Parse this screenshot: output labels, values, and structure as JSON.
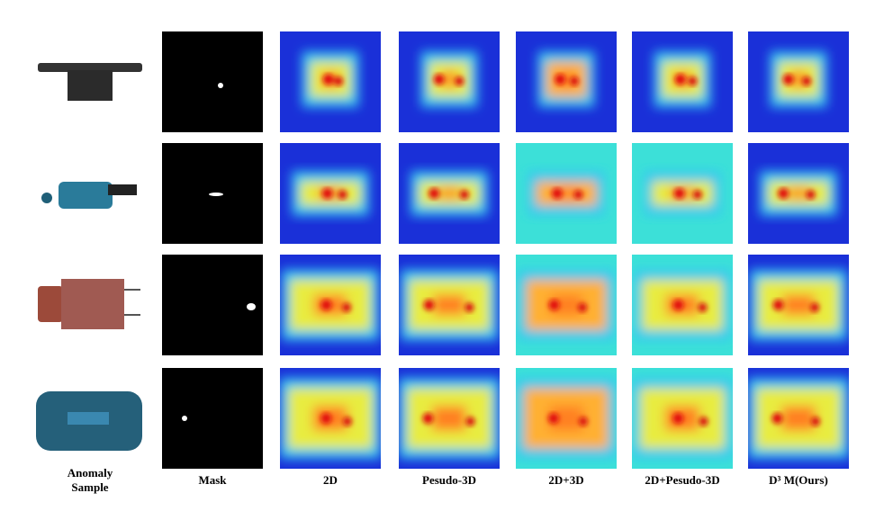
{
  "columns": [
    {
      "label": [
        "Anomaly",
        "Sample"
      ]
    },
    {
      "label": [
        "Mask"
      ]
    },
    {
      "label": [
        "2D"
      ]
    },
    {
      "label": [
        "Pesudo-3D"
      ]
    },
    {
      "label": [
        "2D+3D"
      ]
    },
    {
      "label": [
        "2D+Pesudo-3D"
      ]
    },
    {
      "label": [
        "D³ M(Ours)"
      ]
    }
  ]
}
